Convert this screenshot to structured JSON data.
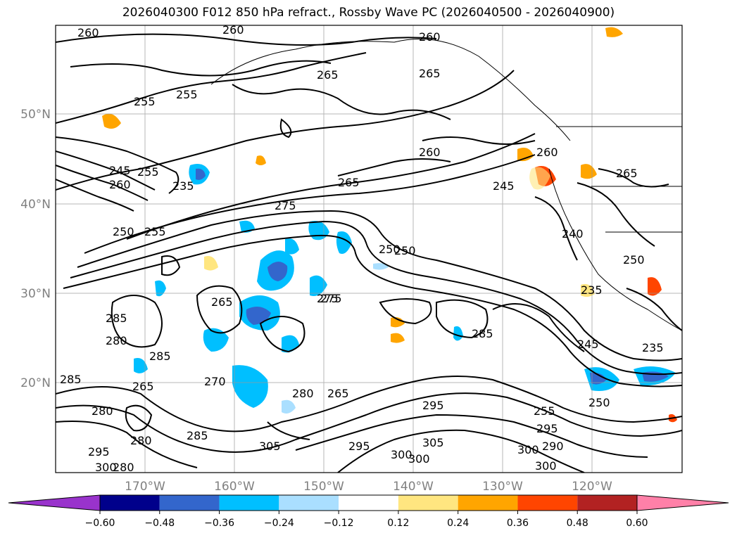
{
  "title": "2026040300 F012 850 hPa refract., Rossby Wave PC (2026040500 - 2026040900)",
  "lat_labels": [
    "50°N",
    "40°N",
    "30°N",
    "20°N"
  ],
  "lon_labels": [
    "170°W",
    "160°W",
    "150°W",
    "140°W",
    "130°W",
    "120°W"
  ],
  "colorbar": {
    "colors": [
      "#9933cc",
      "#00008b",
      "#3366cc",
      "#00bfff",
      "#aadfff",
      "#ffffff",
      "#ffe680",
      "#ffa500",
      "#ff4500",
      "#b22222",
      "#ff80a8"
    ],
    "tick_labels": [
      "−0.60",
      "−0.48",
      "−0.36",
      "−0.24",
      "−0.12",
      "0.12",
      "0.24",
      "0.36",
      "0.48",
      "0.60"
    ]
  },
  "contour_labels": [
    "260",
    "260",
    "260",
    "265",
    "255",
    "255",
    "265",
    "260",
    "265",
    "260",
    "265",
    "245",
    "275",
    "245",
    "260",
    "255",
    "250",
    "255",
    "275",
    "250",
    "240",
    "250",
    "235",
    "265",
    "275",
    "285",
    "285",
    "280",
    "280",
    "285",
    "270",
    "265",
    "285",
    "280",
    "265",
    "245",
    "235",
    "285",
    "280",
    "295",
    "305",
    "300",
    "305",
    "280",
    "295",
    "295",
    "300",
    "290",
    "300",
    "250",
    "255",
    "295",
    "250",
    "300",
    "300",
    "235"
  ]
}
